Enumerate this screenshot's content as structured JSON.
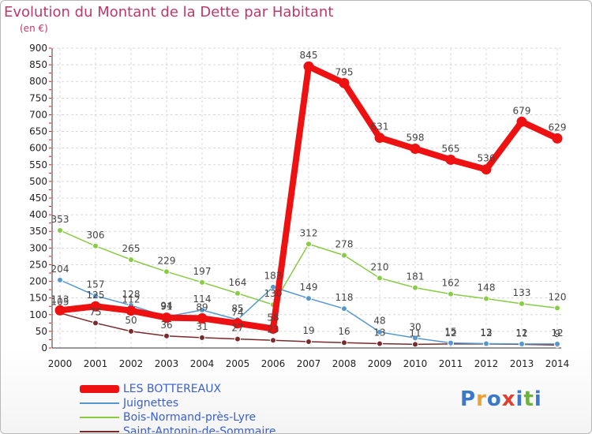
{
  "title": "Evolution du Montant de la Dette par Habitant",
  "subtitle": "(en €)",
  "logo": {
    "text": "Proxiti",
    "colors": [
      "#3b78c8",
      "#f0a030",
      "#3b78c8",
      "#e04030",
      "#3b78c8",
      "#70b040",
      "#3b78c8"
    ]
  },
  "chart_data": {
    "type": "line",
    "x": [
      "2000",
      "2001",
      "2002",
      "2003",
      "2004",
      "2005",
      "2006",
      "2007",
      "2008",
      "2009",
      "2010",
      "2011",
      "2012",
      "2013",
      "2014"
    ],
    "ylim": [
      0,
      900
    ],
    "yticks": [
      0,
      50,
      100,
      150,
      200,
      250,
      300,
      350,
      400,
      450,
      500,
      550,
      600,
      650,
      700,
      750,
      800,
      850,
      900
    ],
    "grid": true,
    "legend_position": "bottom-left",
    "series": [
      {
        "name": "LES BOTTEREAUX",
        "color": "#ee1111",
        "values": [
          113,
          125,
          112,
          91,
          89,
          74,
          58,
          845,
          795,
          631,
          598,
          565,
          536,
          679,
          629
        ],
        "labels": [
          "113",
          "125",
          "112",
          "91",
          "89",
          "74",
          "58",
          "845",
          "795",
          "631",
          "598",
          "565",
          "536",
          "679",
          "629"
        ]
      },
      {
        "name": "Juignettes",
        "color": "#5598d0",
        "values": [
          204,
          157,
          128,
          94,
          114,
          85,
          183,
          149,
          118,
          48,
          30,
          15,
          13,
          12,
          12
        ],
        "labels": [
          "204",
          "157",
          "128",
          "94",
          "114",
          "85",
          "183",
          "149",
          "118",
          "48",
          "30",
          "15",
          "13",
          "12",
          "12"
        ]
      },
      {
        "name": "Bois-Normand-près-Lyre",
        "color": "#88cc44",
        "values": [
          353,
          306,
          265,
          229,
          197,
          164,
          130,
          312,
          278,
          210,
          181,
          162,
          148,
          133,
          120
        ],
        "labels": [
          "353",
          "306",
          "265",
          "229",
          "197",
          "164",
          "130",
          "312",
          "278",
          "210",
          "181",
          "162",
          "148",
          "133",
          "120"
        ]
      },
      {
        "name": "Saint-Antonin-de-Sommaire",
        "color": "#7a2a2a",
        "values": [
          105,
          75,
          50,
          36,
          31,
          27,
          23,
          19,
          16,
          13,
          11,
          12,
          12,
          11,
          9
        ],
        "labels": [
          "105",
          "75",
          "50",
          "36",
          "31",
          "27",
          "23",
          "19",
          "16",
          "13",
          "11",
          "12",
          "12",
          "11",
          "9"
        ]
      }
    ]
  }
}
